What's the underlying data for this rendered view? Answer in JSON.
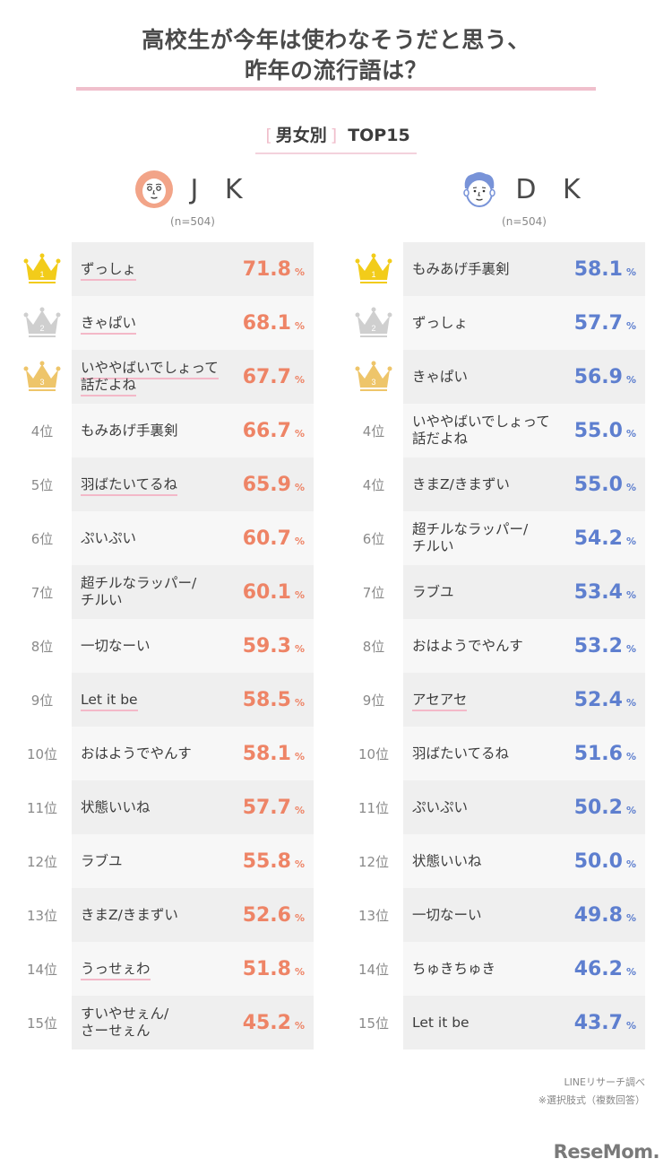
{
  "title": {
    "line1": "高校生が今年は使わなそうだと思う、",
    "line2": "昨年の流行語は？"
  },
  "subtitle": {
    "open_bracket": "[",
    "group": "男女別",
    "close_bracket": "]",
    "top": "TOP15"
  },
  "colors": {
    "jk_accent": "#ee8466",
    "dk_accent": "#5e7fcf",
    "rule_pink": "#f0bfcc",
    "gold": "#f2cc1a",
    "silver": "#cfcfcf",
    "bronze": "#eec56a",
    "row_odd": "#efefef",
    "row_even": "#f7f7f7"
  },
  "jk": {
    "label": "J K",
    "n": "(n=504)",
    "icon": "girl-face-icon",
    "rows": [
      {
        "rank": "1",
        "term": "ずっしょ",
        "pct": "71.8",
        "underline": true
      },
      {
        "rank": "2",
        "term": "きゃぱい",
        "pct": "68.1",
        "underline": true
      },
      {
        "rank": "3",
        "term": "いややばいでしょって話だよね",
        "pct": "67.7",
        "underline": true
      },
      {
        "rank": "4位",
        "term": "もみあげ手裏剣",
        "pct": "66.7",
        "underline": false
      },
      {
        "rank": "5位",
        "term": "羽ばたいてるね",
        "pct": "65.9",
        "underline": true
      },
      {
        "rank": "6位",
        "term": "ぷいぷい",
        "pct": "60.7",
        "underline": false
      },
      {
        "rank": "7位",
        "term": "超チルなラッパー/チルい",
        "pct": "60.1",
        "underline": false
      },
      {
        "rank": "8位",
        "term": "一切なーい",
        "pct": "59.3",
        "underline": false
      },
      {
        "rank": "9位",
        "term": "Let it be",
        "pct": "58.5",
        "underline": true
      },
      {
        "rank": "10位",
        "term": "おはようでやんす",
        "pct": "58.1",
        "underline": false
      },
      {
        "rank": "11位",
        "term": "状態いいね",
        "pct": "57.7",
        "underline": false
      },
      {
        "rank": "12位",
        "term": "ラブユ",
        "pct": "55.8",
        "underline": false
      },
      {
        "rank": "13位",
        "term": "きまZ/きまずい",
        "pct": "52.6",
        "underline": false
      },
      {
        "rank": "14位",
        "term": "うっせぇわ",
        "pct": "51.8",
        "underline": true
      },
      {
        "rank": "15位",
        "term": "すいやせぇん/さーせぇん",
        "pct": "45.2",
        "underline": false
      }
    ]
  },
  "dk": {
    "label": "D K",
    "n": "(n=504)",
    "icon": "boy-face-icon",
    "rows": [
      {
        "rank": "1",
        "term": "もみあげ手裏剣",
        "pct": "58.1",
        "underline": false
      },
      {
        "rank": "2",
        "term": "ずっしょ",
        "pct": "57.7",
        "underline": false
      },
      {
        "rank": "3",
        "term": "きゃぱい",
        "pct": "56.9",
        "underline": false
      },
      {
        "rank": "4位",
        "term": "いややばいでしょって話だよね",
        "pct": "55.0",
        "underline": false
      },
      {
        "rank": "4位",
        "term": "きまZ/きまずい",
        "pct": "55.0",
        "underline": false
      },
      {
        "rank": "6位",
        "term": "超チルなラッパー/チルい",
        "pct": "54.2",
        "underline": false
      },
      {
        "rank": "7位",
        "term": "ラブユ",
        "pct": "53.4",
        "underline": false
      },
      {
        "rank": "8位",
        "term": "おはようでやんす",
        "pct": "53.2",
        "underline": false
      },
      {
        "rank": "9位",
        "term": "アセアセ",
        "pct": "52.4",
        "underline": true
      },
      {
        "rank": "10位",
        "term": "羽ばたいてるね",
        "pct": "51.6",
        "underline": false
      },
      {
        "rank": "11位",
        "term": "ぷいぷい",
        "pct": "50.2",
        "underline": false
      },
      {
        "rank": "12位",
        "term": "状態いいね",
        "pct": "50.0",
        "underline": false
      },
      {
        "rank": "13位",
        "term": "一切なーい",
        "pct": "49.8",
        "underline": false
      },
      {
        "rank": "14位",
        "term": "ちゅきちゅき",
        "pct": "46.2",
        "underline": false
      },
      {
        "rank": "15位",
        "term": "Let it be",
        "pct": "43.7",
        "underline": false
      }
    ]
  },
  "pct_symbol": "%",
  "footer": {
    "source": "LINEリサーチ調べ",
    "note": "※選択肢式（複数回答）",
    "logo": "ReseMom."
  },
  "chart_data": [
    {
      "type": "table",
      "title": "高校生が今年は使わなそうだと思う、昨年の流行語は？ [男女別] TOP15 — JK (n=504)",
      "columns": [
        "rank",
        "term",
        "percent"
      ],
      "categories": [
        "ずっしょ",
        "きゃぱい",
        "いややばいでしょって話だよね",
        "もみあげ手裏剣",
        "羽ばたいてるね",
        "ぷいぷい",
        "超チルなラッパー/チルい",
        "一切なーい",
        "Let it be",
        "おはようでやんす",
        "状態いいね",
        "ラブユ",
        "きまZ/きまずい",
        "うっせぇわ",
        "すいやせぇん/さーせぇん"
      ],
      "ranks": [
        1,
        2,
        3,
        4,
        5,
        6,
        7,
        8,
        9,
        10,
        11,
        12,
        13,
        14,
        15
      ],
      "values": [
        71.8,
        68.1,
        67.7,
        66.7,
        65.9,
        60.7,
        60.1,
        59.3,
        58.5,
        58.1,
        57.7,
        55.8,
        52.6,
        51.8,
        45.2
      ],
      "unit": "%"
    },
    {
      "type": "table",
      "title": "高校生が今年は使わなそうだと思う、昨年の流行語は？ [男女別] TOP15 — DK (n=504)",
      "columns": [
        "rank",
        "term",
        "percent"
      ],
      "categories": [
        "もみあげ手裏剣",
        "ずっしょ",
        "きゃぱい",
        "いややばいでしょって話だよね",
        "きまZ/きまずい",
        "超チルなラッパー/チルい",
        "ラブユ",
        "おはようでやんす",
        "アセアセ",
        "羽ばたいてるね",
        "ぷいぷい",
        "状態いいね",
        "一切なーい",
        "ちゅきちゅき",
        "Let it be"
      ],
      "ranks": [
        1,
        2,
        3,
        4,
        4,
        6,
        7,
        8,
        9,
        10,
        11,
        12,
        13,
        14,
        15
      ],
      "values": [
        58.1,
        57.7,
        56.9,
        55.0,
        55.0,
        54.2,
        53.4,
        53.2,
        52.4,
        51.6,
        50.2,
        50.0,
        49.8,
        46.2,
        43.7
      ],
      "unit": "%"
    }
  ]
}
